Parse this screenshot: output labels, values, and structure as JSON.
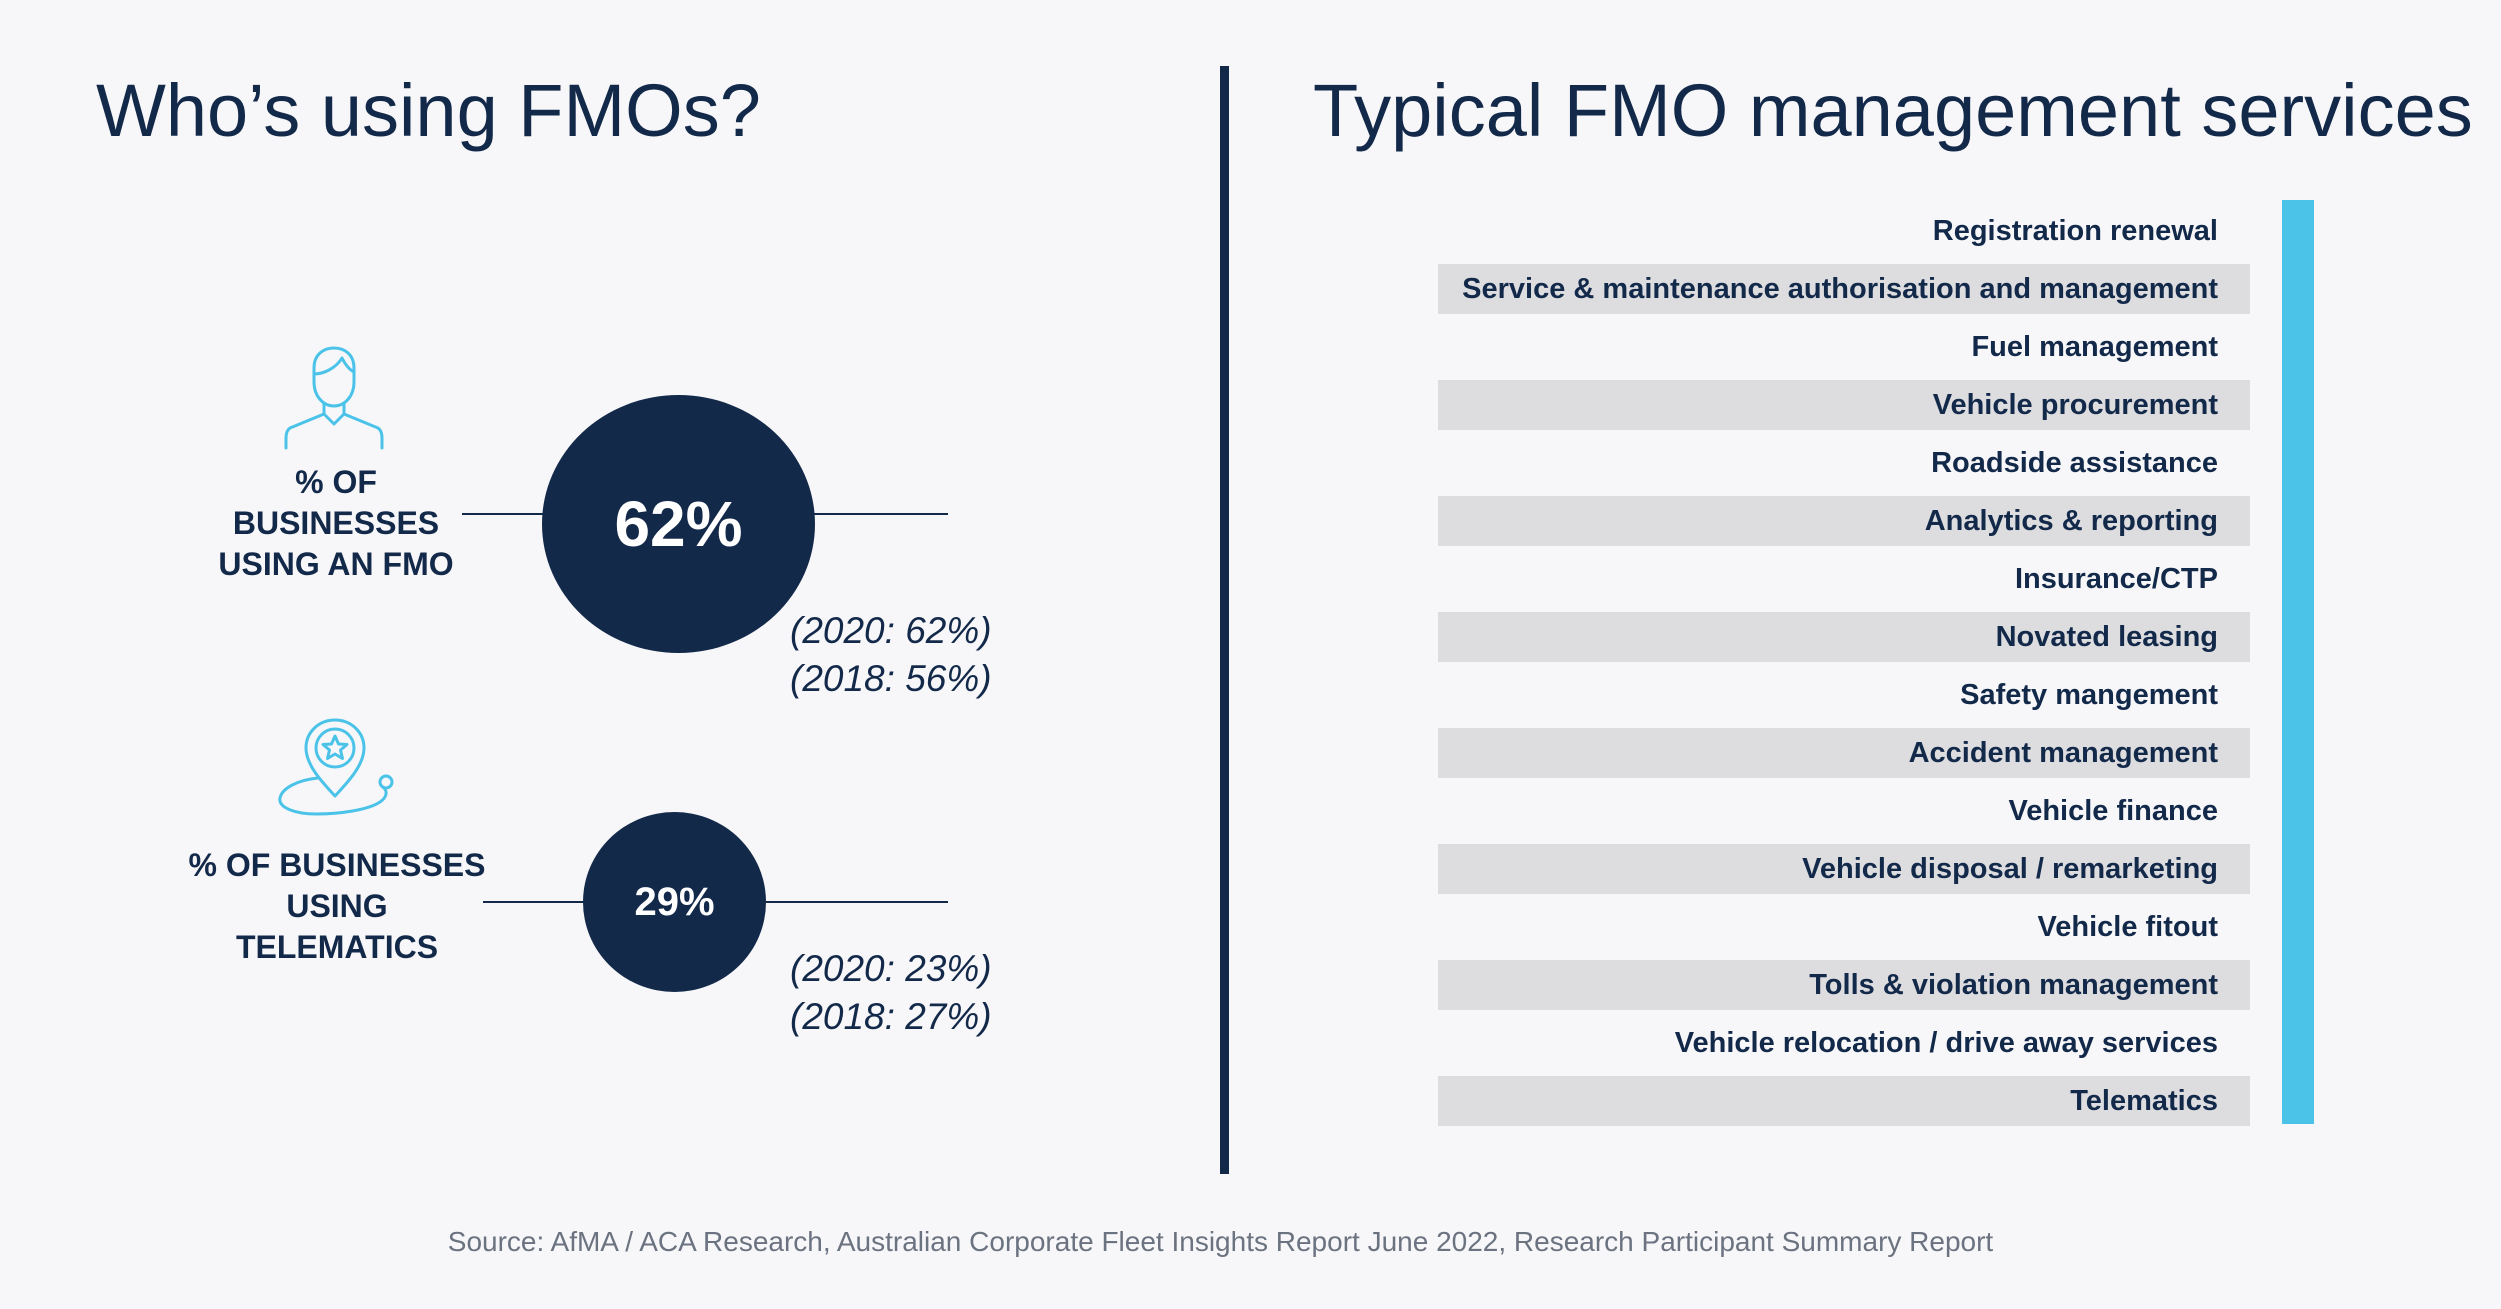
{
  "left": {
    "title": "Who’s using FMOs?",
    "stats": [
      {
        "icon": "person-icon",
        "label_lines": [
          "% OF",
          "BUSINESSES",
          "USING AN FMO"
        ],
        "value": "62%",
        "history": [
          "(2020: 62%)",
          "(2018: 56%)"
        ]
      },
      {
        "icon": "location-pin-star-icon",
        "label_lines": [
          "% OF BUSINESSES",
          "USING",
          "TELEMATICS"
        ],
        "value": "29%",
        "history": [
          "(2020: 23%)",
          "(2018: 27%)"
        ]
      }
    ]
  },
  "right": {
    "title": "Typical FMO management services",
    "services": [
      "Registration renewal",
      "Service & maintenance authorisation and management",
      "Fuel management",
      "Vehicle procurement",
      "Roadside assistance",
      "Analytics & reporting",
      "Insurance/CTP",
      "Novated leasing",
      "Safety mangement",
      "Accident management",
      "Vehicle finance",
      "Vehicle disposal / remarketing",
      "Vehicle fitout",
      "Tolls & violation management",
      "Vehicle relocation / drive away services",
      "Telematics"
    ]
  },
  "footer": {
    "source": "Source: AfMA / ACA Research, Australian Corporate Fleet Insights Report June 2022, Research Participant Summary Report"
  },
  "colors": {
    "navy": "#13294a",
    "accent": "#4bc3e9",
    "row_shade": "#dddde0",
    "background": "#f7f7f9"
  }
}
